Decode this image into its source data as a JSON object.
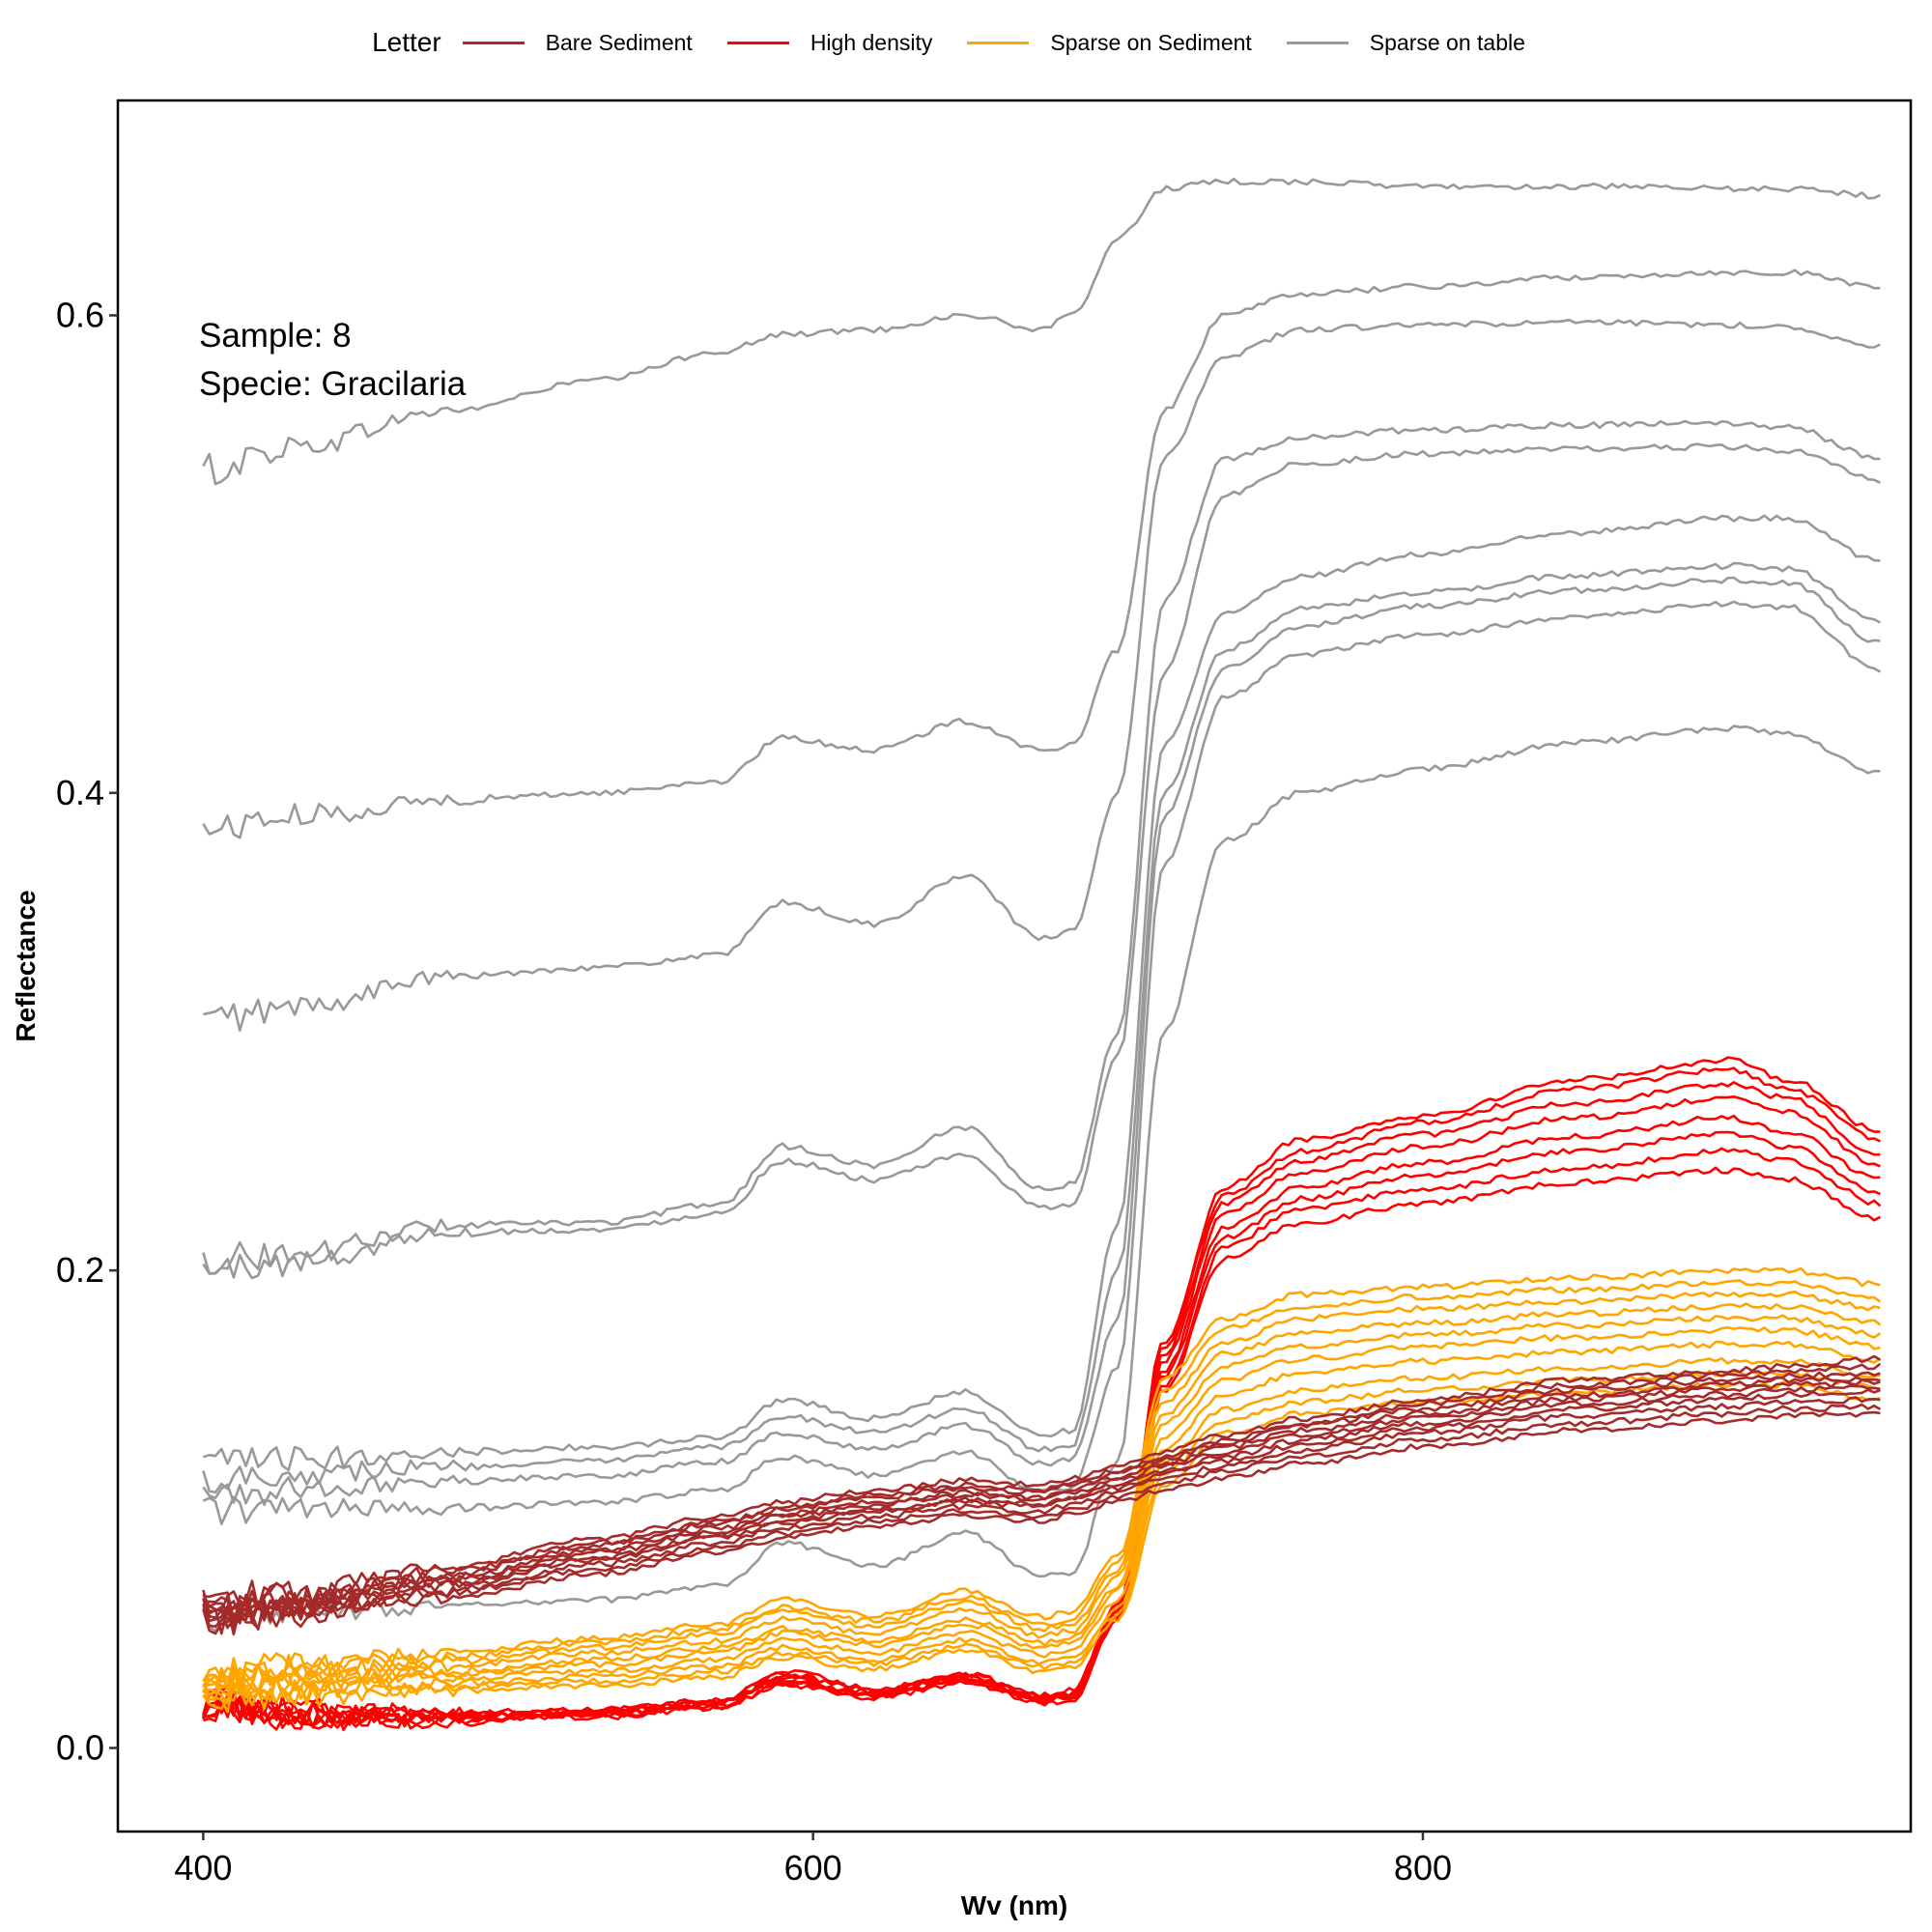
{
  "chart_data": {
    "type": "line",
    "title": "",
    "xlabel": "Wv (nm)",
    "ylabel": "Reflectance",
    "xlim": [
      372,
      960
    ],
    "ylim": [
      -0.035,
      0.69
    ],
    "xticks": [
      400,
      600,
      800
    ],
    "yticks": [
      0.0,
      0.2,
      0.4,
      0.6
    ],
    "xtick_labels": [
      "400",
      "600",
      "800"
    ],
    "ytick_labels": [
      "0.0",
      "0.2",
      "0.4",
      "0.6"
    ],
    "grid": false,
    "legend_title": "Letter",
    "legend_position": "top",
    "annotations": [
      "Sample: 8",
      "Specie: Gracilaria"
    ],
    "wavelength_nodes": [
      400,
      430,
      480,
      530,
      570,
      590,
      620,
      650,
      675,
      685,
      700,
      715,
      735,
      760,
      800,
      850,
      900,
      920,
      950
    ],
    "series": [
      {
        "name": "Sparse on table",
        "color": "#999999",
        "curves": [
          [
            0.535,
            0.545,
            0.56,
            0.573,
            0.585,
            0.592,
            0.594,
            0.6,
            0.594,
            0.6,
            0.632,
            0.653,
            0.656,
            0.656,
            0.654,
            0.654,
            0.653,
            0.653,
            0.65
          ],
          [
            0.385,
            0.39,
            0.397,
            0.4,
            0.405,
            0.423,
            0.418,
            0.43,
            0.418,
            0.42,
            0.46,
            0.56,
            0.6,
            0.609,
            0.612,
            0.616,
            0.618,
            0.618,
            0.612
          ],
          [
            0.305,
            0.31,
            0.323,
            0.327,
            0.332,
            0.354,
            0.345,
            0.365,
            0.339,
            0.342,
            0.4,
            0.54,
            0.583,
            0.594,
            0.596,
            0.597,
            0.596,
            0.595,
            0.587
          ],
          [
            0.205,
            0.207,
            0.219,
            0.22,
            0.228,
            0.252,
            0.244,
            0.26,
            0.234,
            0.236,
            0.3,
            0.48,
            0.54,
            0.549,
            0.552,
            0.554,
            0.555,
            0.553,
            0.54
          ],
          [
            0.2,
            0.203,
            0.216,
            0.217,
            0.224,
            0.246,
            0.238,
            0.248,
            0.226,
            0.228,
            0.29,
            0.45,
            0.525,
            0.538,
            0.542,
            0.544,
            0.545,
            0.543,
            0.531
          ],
          [
            0.119,
            0.121,
            0.124,
            0.126,
            0.13,
            0.146,
            0.138,
            0.149,
            0.131,
            0.133,
            0.22,
            0.42,
            0.475,
            0.491,
            0.5,
            0.509,
            0.515,
            0.515,
            0.497
          ],
          [
            0.113,
            0.115,
            0.118,
            0.12,
            0.126,
            0.139,
            0.132,
            0.142,
            0.125,
            0.127,
            0.2,
            0.4,
            0.46,
            0.477,
            0.484,
            0.491,
            0.495,
            0.494,
            0.472
          ],
          [
            0.106,
            0.108,
            0.112,
            0.114,
            0.12,
            0.132,
            0.125,
            0.135,
            0.119,
            0.121,
            0.18,
            0.39,
            0.452,
            0.47,
            0.478,
            0.485,
            0.489,
            0.488,
            0.463
          ],
          [
            0.1,
            0.1,
            0.1,
            0.103,
            0.108,
            0.122,
            0.114,
            0.124,
            0.107,
            0.109,
            0.16,
            0.37,
            0.44,
            0.458,
            0.466,
            0.474,
            0.479,
            0.478,
            0.451
          ],
          [
            0.055,
            0.057,
            0.059,
            0.062,
            0.068,
            0.086,
            0.076,
            0.09,
            0.072,
            0.073,
            0.12,
            0.3,
            0.38,
            0.4,
            0.41,
            0.421,
            0.427,
            0.425,
            0.408
          ]
        ]
      },
      {
        "name": "High density",
        "color": "#ff0000",
        "curves": [
          [
            0.021,
            0.016,
            0.015,
            0.016,
            0.02,
            0.032,
            0.025,
            0.031,
            0.022,
            0.024,
            0.06,
            0.17,
            0.235,
            0.255,
            0.265,
            0.28,
            0.288,
            0.28,
            0.258
          ],
          [
            0.02,
            0.015,
            0.014,
            0.016,
            0.02,
            0.031,
            0.024,
            0.031,
            0.022,
            0.023,
            0.06,
            0.168,
            0.232,
            0.25,
            0.262,
            0.276,
            0.284,
            0.276,
            0.255
          ],
          [
            0.02,
            0.015,
            0.014,
            0.015,
            0.019,
            0.03,
            0.024,
            0.03,
            0.021,
            0.023,
            0.058,
            0.165,
            0.228,
            0.246,
            0.257,
            0.27,
            0.278,
            0.272,
            0.248
          ],
          [
            0.019,
            0.014,
            0.013,
            0.015,
            0.019,
            0.029,
            0.023,
            0.03,
            0.021,
            0.022,
            0.058,
            0.162,
            0.224,
            0.241,
            0.252,
            0.264,
            0.272,
            0.266,
            0.244
          ],
          [
            0.019,
            0.014,
            0.013,
            0.015,
            0.018,
            0.028,
            0.023,
            0.029,
            0.02,
            0.022,
            0.056,
            0.158,
            0.218,
            0.235,
            0.245,
            0.256,
            0.264,
            0.258,
            0.238
          ],
          [
            0.018,
            0.013,
            0.012,
            0.014,
            0.018,
            0.028,
            0.022,
            0.029,
            0.02,
            0.021,
            0.056,
            0.156,
            0.214,
            0.23,
            0.24,
            0.25,
            0.257,
            0.252,
            0.232
          ],
          [
            0.018,
            0.013,
            0.012,
            0.014,
            0.017,
            0.027,
            0.022,
            0.028,
            0.02,
            0.021,
            0.054,
            0.152,
            0.21,
            0.226,
            0.234,
            0.243,
            0.25,
            0.246,
            0.228
          ],
          [
            0.017,
            0.012,
            0.011,
            0.013,
            0.017,
            0.026,
            0.021,
            0.027,
            0.019,
            0.02,
            0.054,
            0.15,
            0.205,
            0.22,
            0.228,
            0.237,
            0.242,
            0.238,
            0.222
          ]
        ]
      },
      {
        "name": "Sparse on Sediment",
        "color": "#ffa500",
        "curves": [
          [
            0.03,
            0.035,
            0.04,
            0.046,
            0.052,
            0.062,
            0.055,
            0.066,
            0.055,
            0.057,
            0.08,
            0.155,
            0.18,
            0.19,
            0.193,
            0.197,
            0.2,
            0.2,
            0.194
          ],
          [
            0.029,
            0.034,
            0.038,
            0.044,
            0.05,
            0.059,
            0.053,
            0.063,
            0.052,
            0.054,
            0.078,
            0.15,
            0.176,
            0.185,
            0.189,
            0.192,
            0.195,
            0.195,
            0.188
          ],
          [
            0.028,
            0.032,
            0.036,
            0.042,
            0.048,
            0.057,
            0.051,
            0.061,
            0.05,
            0.052,
            0.075,
            0.145,
            0.17,
            0.18,
            0.184,
            0.187,
            0.19,
            0.19,
            0.184
          ],
          [
            0.027,
            0.031,
            0.034,
            0.04,
            0.045,
            0.054,
            0.048,
            0.058,
            0.047,
            0.049,
            0.072,
            0.14,
            0.165,
            0.174,
            0.178,
            0.182,
            0.185,
            0.185,
            0.178
          ],
          [
            0.026,
            0.029,
            0.032,
            0.037,
            0.042,
            0.05,
            0.045,
            0.054,
            0.044,
            0.046,
            0.068,
            0.136,
            0.16,
            0.168,
            0.173,
            0.177,
            0.18,
            0.18,
            0.173
          ],
          [
            0.025,
            0.028,
            0.031,
            0.035,
            0.04,
            0.048,
            0.043,
            0.052,
            0.042,
            0.044,
            0.066,
            0.13,
            0.154,
            0.163,
            0.168,
            0.172,
            0.175,
            0.175,
            0.168
          ],
          [
            0.024,
            0.026,
            0.029,
            0.032,
            0.037,
            0.045,
            0.04,
            0.048,
            0.039,
            0.041,
            0.062,
            0.125,
            0.148,
            0.157,
            0.162,
            0.166,
            0.169,
            0.169,
            0.162
          ],
          [
            0.023,
            0.025,
            0.027,
            0.03,
            0.034,
            0.042,
            0.037,
            0.045,
            0.036,
            0.038,
            0.058,
            0.12,
            0.142,
            0.15,
            0.155,
            0.159,
            0.162,
            0.162,
            0.156
          ],
          [
            0.022,
            0.024,
            0.026,
            0.028,
            0.032,
            0.04,
            0.035,
            0.043,
            0.034,
            0.036,
            0.056,
            0.115,
            0.137,
            0.145,
            0.15,
            0.154,
            0.157,
            0.157,
            0.151
          ],
          [
            0.021,
            0.022,
            0.024,
            0.026,
            0.03,
            0.038,
            0.033,
            0.041,
            0.032,
            0.034,
            0.054,
            0.11,
            0.132,
            0.14,
            0.145,
            0.149,
            0.152,
            0.152,
            0.146
          ]
        ]
      },
      {
        "name": "Bare Sediment",
        "color": "#a52a2a",
        "curves": [
          [
            0.062,
            0.066,
            0.076,
            0.088,
            0.097,
            0.103,
            0.108,
            0.112,
            0.11,
            0.113,
            0.118,
            0.124,
            0.131,
            0.138,
            0.146,
            0.154,
            0.158,
            0.16,
            0.163
          ],
          [
            0.06,
            0.064,
            0.074,
            0.086,
            0.095,
            0.101,
            0.106,
            0.11,
            0.108,
            0.111,
            0.116,
            0.122,
            0.129,
            0.136,
            0.144,
            0.152,
            0.156,
            0.158,
            0.16
          ],
          [
            0.059,
            0.063,
            0.073,
            0.085,
            0.094,
            0.1,
            0.105,
            0.109,
            0.107,
            0.11,
            0.115,
            0.121,
            0.128,
            0.135,
            0.142,
            0.15,
            0.154,
            0.156,
            0.157
          ],
          [
            0.058,
            0.062,
            0.071,
            0.083,
            0.092,
            0.098,
            0.103,
            0.107,
            0.105,
            0.108,
            0.113,
            0.119,
            0.126,
            0.133,
            0.14,
            0.148,
            0.152,
            0.154,
            0.155
          ],
          [
            0.057,
            0.061,
            0.07,
            0.082,
            0.091,
            0.097,
            0.102,
            0.106,
            0.104,
            0.107,
            0.112,
            0.118,
            0.124,
            0.131,
            0.138,
            0.146,
            0.15,
            0.152,
            0.153
          ],
          [
            0.056,
            0.06,
            0.069,
            0.08,
            0.089,
            0.095,
            0.1,
            0.104,
            0.102,
            0.105,
            0.11,
            0.116,
            0.122,
            0.129,
            0.136,
            0.144,
            0.148,
            0.15,
            0.151
          ],
          [
            0.055,
            0.059,
            0.068,
            0.079,
            0.088,
            0.094,
            0.099,
            0.103,
            0.101,
            0.104,
            0.109,
            0.115,
            0.12,
            0.127,
            0.134,
            0.142,
            0.146,
            0.148,
            0.149
          ],
          [
            0.054,
            0.058,
            0.066,
            0.077,
            0.086,
            0.092,
            0.097,
            0.101,
            0.099,
            0.102,
            0.107,
            0.113,
            0.118,
            0.125,
            0.132,
            0.139,
            0.143,
            0.145,
            0.146
          ],
          [
            0.053,
            0.057,
            0.065,
            0.075,
            0.084,
            0.09,
            0.095,
            0.099,
            0.097,
            0.1,
            0.105,
            0.111,
            0.116,
            0.122,
            0.129,
            0.136,
            0.14,
            0.142,
            0.143
          ],
          [
            0.052,
            0.056,
            0.063,
            0.073,
            0.082,
            0.088,
            0.093,
            0.097,
            0.095,
            0.098,
            0.103,
            0.108,
            0.113,
            0.119,
            0.126,
            0.133,
            0.137,
            0.139,
            0.14
          ]
        ]
      }
    ],
    "legend_order": [
      "Bare Sediment",
      "High density",
      "Sparse on Sediment",
      "Sparse on table"
    ]
  }
}
